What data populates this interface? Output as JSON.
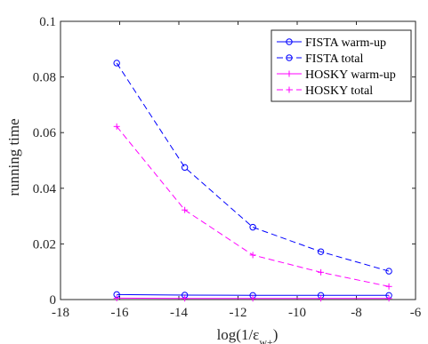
{
  "chart_data": {
    "type": "line",
    "xlabel": "log(1/ε",
    "xlabel_subscript": "w+",
    "xlabel_suffix": ")",
    "ylabel": "running time",
    "xlim": [
      -18,
      -6
    ],
    "ylim": [
      0,
      0.1
    ],
    "x_ticks": [
      -18,
      -16,
      -14,
      -12,
      -10,
      -8,
      -6
    ],
    "y_ticks": [
      0,
      0.02,
      0.04,
      0.06,
      0.08,
      0.1
    ],
    "x_tick_labels": [
      "-18",
      "-16",
      "-14",
      "-12",
      "-10",
      "-8",
      "-6"
    ],
    "y_tick_labels": [
      "0",
      "0.02",
      "0.04",
      "0.06",
      "0.08",
      "0.1"
    ],
    "x": [
      -16.1,
      -13.8,
      -11.5,
      -9.2,
      -6.9
    ],
    "legend_position": "top-right",
    "grid": false,
    "series": [
      {
        "name": "FISTA warm-up",
        "color": "#0000ff",
        "dash": "solid",
        "marker": "circle",
        "values": [
          0.0018,
          0.0016,
          0.0015,
          0.0015,
          0.0015
        ]
      },
      {
        "name": "FISTA total",
        "color": "#0000ff",
        "dash": "dashed",
        "marker": "circle",
        "values": [
          0.085,
          0.0475,
          0.026,
          0.0172,
          0.0102
        ]
      },
      {
        "name": "HOSKY warm-up",
        "color": "#ff00ff",
        "dash": "solid",
        "marker": "plus",
        "values": [
          0.0005,
          0.0004,
          0.0004,
          0.0004,
          0.0004
        ]
      },
      {
        "name": "HOSKY total",
        "color": "#ff00ff",
        "dash": "dashed",
        "marker": "plus",
        "values": [
          0.0622,
          0.0322,
          0.016,
          0.0098,
          0.0047
        ]
      }
    ]
  }
}
